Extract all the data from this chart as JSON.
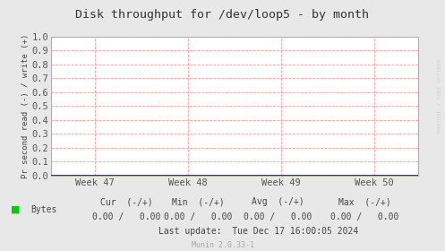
{
  "title": "Disk throughput for /dev/loop5 - by month",
  "ylabel": "Pr second read (-) / write (+)",
  "ylim": [
    0.0,
    1.0
  ],
  "yticks": [
    0.0,
    0.1,
    0.2,
    0.3,
    0.4,
    0.5,
    0.6,
    0.7,
    0.8,
    0.9,
    1.0
  ],
  "xtick_labels": [
    "Week 47",
    "Week 48",
    "Week 49",
    "Week 50"
  ],
  "bg_color": "#e8e8e8",
  "plot_bg_color": "#ffffff",
  "grid_color": "#ff9999",
  "spine_color": "#aaaaaa",
  "title_color": "#333333",
  "axis_color": "#444444",
  "tick_color": "#555555",
  "line_color": "#0000cc",
  "arrow_color": "#aaaadd",
  "legend_label": "Bytes",
  "legend_color": "#00cc00",
  "cur_label": "Cur  (-/+)",
  "min_label": "Min  (-/+)",
  "avg_label": "Avg  (-/+)",
  "max_label": "Max  (-/+)",
  "cur_val": "0.00 /   0.00",
  "min_val": "0.00 /   0.00",
  "avg_val": "0.00 /   0.00",
  "max_val": "0.00 /   0.00",
  "last_update": "Last update:  Tue Dec 17 16:00:05 2024",
  "munin_version": "Munin 2.0.33-1",
  "watermark": "RRDTOOL / TOBI OETIKER",
  "font_family": "DejaVu Sans Mono"
}
